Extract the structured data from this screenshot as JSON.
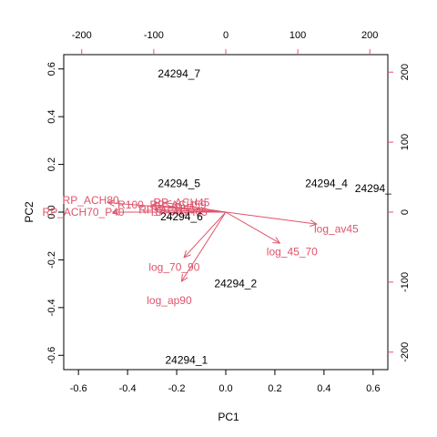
{
  "chart_data": {
    "type": "biplot",
    "xlabel": "PC1",
    "ylabel": "PC2",
    "xlim": [
      -0.66,
      0.66
    ],
    "ylim": [
      -0.66,
      0.66
    ],
    "xticks": [
      -0.6,
      -0.4,
      -0.2,
      0.0,
      0.2,
      0.4,
      0.6
    ],
    "yticks": [
      -0.6,
      -0.4,
      -0.2,
      0.0,
      0.2,
      0.4,
      0.6
    ],
    "x_tick_labels": [
      "-0.6",
      "-0.4",
      "-0.2",
      "0.0",
      "0.2",
      "0.4",
      "0.6"
    ],
    "y_tick_labels": [
      "-0.6",
      "-0.4",
      "-0.2",
      "0.0",
      "0.2",
      "0.4",
      "0.6"
    ],
    "top_axis": {
      "lim": [
        -225,
        225
      ],
      "ticks": [
        -200,
        -100,
        0,
        100,
        200
      ],
      "tick_labels": [
        "-200",
        "-100",
        "0",
        "100",
        "200"
      ]
    },
    "right_axis": {
      "lim": [
        -225,
        225
      ],
      "ticks": [
        -200,
        -100,
        0,
        100,
        200
      ],
      "tick_labels": [
        "-200",
        "-100",
        "0",
        "100",
        "200"
      ]
    },
    "observation_color": "#000000",
    "variable_color": "#DF536B",
    "observations": [
      {
        "label": "24294_7",
        "x": -0.19,
        "y": 0.58
      },
      {
        "label": "24294_5",
        "x": -0.19,
        "y": 0.12
      },
      {
        "label": "24294_6",
        "x": -0.18,
        "y": -0.02
      },
      {
        "label": "24294_4",
        "x": 0.41,
        "y": 0.12
      },
      {
        "label": "24294_",
        "x": 0.6,
        "y": 0.1
      },
      {
        "label": "24294_2",
        "x": 0.04,
        "y": -0.3
      },
      {
        "label": "24294_1",
        "x": -0.16,
        "y": -0.62
      }
    ],
    "variables": [
      {
        "label": "log_av45",
        "x": 0.37,
        "y": -0.05,
        "label_x": 0.45,
        "label_y": -0.07
      },
      {
        "label": "log_45_70",
        "x": 0.22,
        "y": -0.13,
        "label_x": 0.27,
        "label_y": -0.165
      },
      {
        "label": "log_70_90",
        "x": -0.17,
        "y": -0.19,
        "label_x": -0.21,
        "label_y": -0.23
      },
      {
        "label": "log_ap90",
        "x": -0.18,
        "y": -0.29,
        "label_x": -0.23,
        "label_y": -0.37
      },
      {
        "label": "RP_ACH80",
        "x": -0.48,
        "y": 0.04,
        "label_x": -0.55,
        "label_y": 0.05
      },
      {
        "label": "RP_ACH70_P40",
        "x": -0.46,
        "y": 0.0,
        "label_x": -0.58,
        "label_y": 0.0
      },
      {
        "label": "RP_ACH45",
        "x": -0.25,
        "y": 0.04,
        "label_x": -0.18,
        "label_y": 0.04
      },
      {
        "label": "R100_RP_ACH59",
        "x": -0.3,
        "y": 0.03,
        "label_x": -0.26,
        "label_y": 0.03
      },
      {
        "label": "RP_ACH65",
        "x": -0.24,
        "y": 0.0,
        "label_x": -0.19,
        "label_y": 0.0
      },
      {
        "label": "RP_ACH55",
        "x": -0.29,
        "y": 0.01,
        "label_x": -0.24,
        "label_y": 0.01
      }
    ]
  }
}
